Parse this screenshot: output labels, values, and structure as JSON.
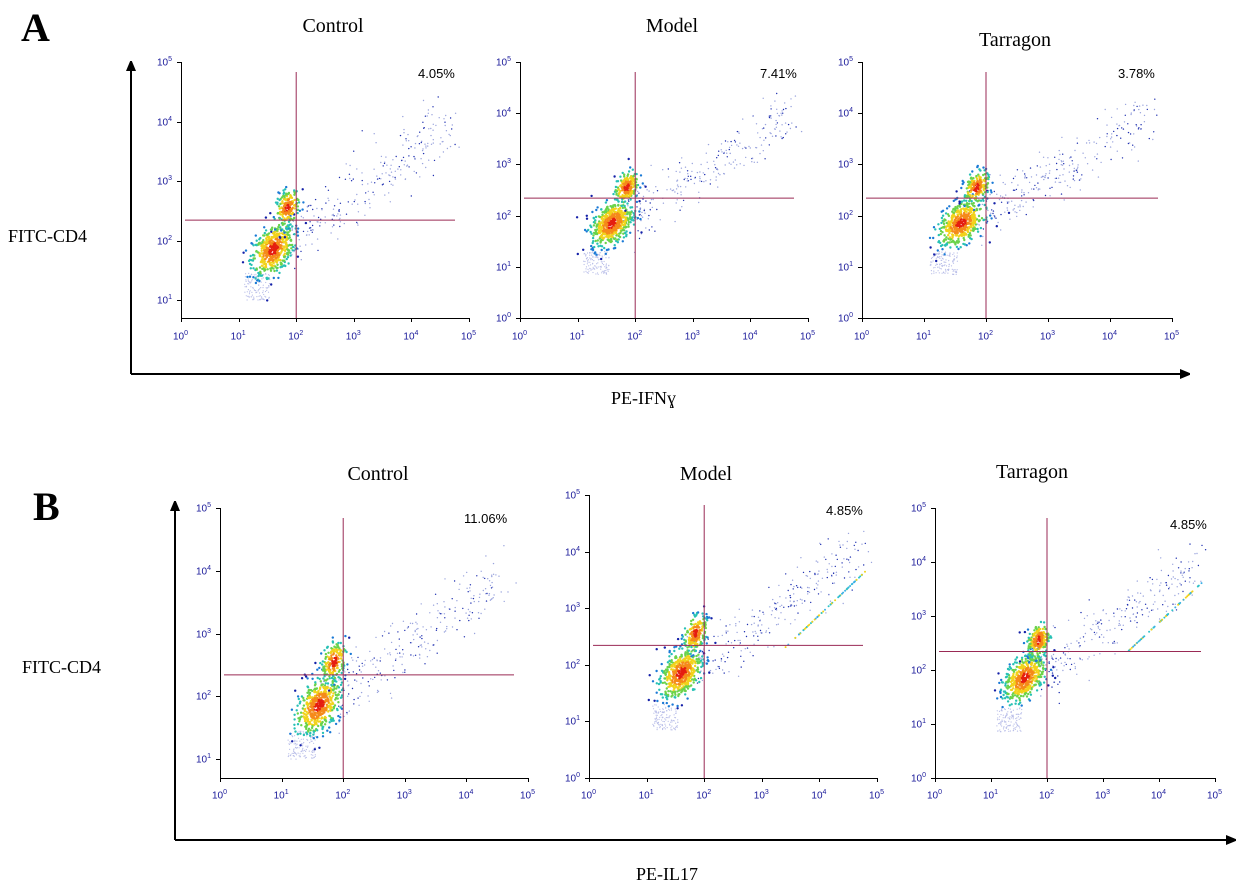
{
  "figure": {
    "panels": [
      {
        "letter": "A",
        "ylabel": "FITC-CD4",
        "xlabel": "PE-IFNɣ",
        "plots": [
          {
            "title": "Control",
            "percent": "4.05%"
          },
          {
            "title": "Model",
            "percent": "7.41%"
          },
          {
            "title": "Tarragon",
            "percent": "3.78%"
          }
        ]
      },
      {
        "letter": "B",
        "ylabel": "FITC-CD4",
        "xlabel": "PE-IL17",
        "plots": [
          {
            "title": "Control",
            "percent": "11.06%"
          },
          {
            "title": "Model",
            "percent": "4.85%"
          },
          {
            "title": "Tarragon",
            "percent": "4.85%"
          }
        ]
      }
    ]
  },
  "chart_data": [
    {
      "type": "scatter",
      "panel": "A",
      "title": "Control",
      "xlabel": "PE-IFNɣ",
      "ylabel": "FITC-CD4",
      "x_scale": "log",
      "y_scale": "log",
      "xlim": [
        1,
        100000
      ],
      "ylim": [
        5,
        100000
      ],
      "x_ticks": [
        "10^0",
        "10^1",
        "10^2",
        "10^3",
        "10^4",
        "10^5"
      ],
      "y_ticks": [
        "10^1",
        "10^2",
        "10^3",
        "10^4",
        "10^5"
      ],
      "quadrant_gate": {
        "x": 100,
        "y": 220
      },
      "upper_right_percent": 4.05
    },
    {
      "type": "scatter",
      "panel": "A",
      "title": "Model",
      "xlabel": "PE-IFNɣ",
      "ylabel": "FITC-CD4",
      "x_scale": "log",
      "y_scale": "log",
      "xlim": [
        1,
        100000
      ],
      "ylim": [
        1,
        100000
      ],
      "x_ticks": [
        "10^0",
        "10^1",
        "10^2",
        "10^3",
        "10^4",
        "10^5"
      ],
      "y_ticks": [
        "10^0",
        "10^1",
        "10^2",
        "10^3",
        "10^4",
        "10^5"
      ],
      "quadrant_gate": {
        "x": 100,
        "y": 220
      },
      "upper_right_percent": 7.41
    },
    {
      "type": "scatter",
      "panel": "A",
      "title": "Tarragon",
      "xlabel": "PE-IFNɣ",
      "ylabel": "FITC-CD4",
      "x_scale": "log",
      "y_scale": "log",
      "xlim": [
        1,
        100000
      ],
      "ylim": [
        1,
        100000
      ],
      "x_ticks": [
        "10^0",
        "10^1",
        "10^2",
        "10^3",
        "10^4",
        "10^5"
      ],
      "y_ticks": [
        "10^0",
        "10^1",
        "10^2",
        "10^3",
        "10^4",
        "10^5"
      ],
      "quadrant_gate": {
        "x": 100,
        "y": 220
      },
      "upper_right_percent": 3.78
    },
    {
      "type": "scatter",
      "panel": "B",
      "title": "Control",
      "xlabel": "PE-IL17",
      "ylabel": "FITC-CD4",
      "x_scale": "log",
      "y_scale": "log",
      "xlim": [
        1,
        100000
      ],
      "ylim": [
        5,
        100000
      ],
      "x_ticks": [
        "10^0",
        "10^1",
        "10^2",
        "10^3",
        "10^4",
        "10^5"
      ],
      "y_ticks": [
        "10^1",
        "10^2",
        "10^3",
        "10^4",
        "10^5"
      ],
      "quadrant_gate": {
        "x": 100,
        "y": 220
      },
      "upper_right_percent": 11.06
    },
    {
      "type": "scatter",
      "panel": "B",
      "title": "Model",
      "xlabel": "PE-IL17",
      "ylabel": "FITC-CD4",
      "x_scale": "log",
      "y_scale": "log",
      "xlim": [
        1,
        100000
      ],
      "ylim": [
        1,
        100000
      ],
      "x_ticks": [
        "10^0",
        "10^1",
        "10^2",
        "10^3",
        "10^4",
        "10^5"
      ],
      "y_ticks": [
        "10^0",
        "10^1",
        "10^2",
        "10^3",
        "10^4",
        "10^5"
      ],
      "quadrant_gate": {
        "x": 100,
        "y": 220
      },
      "upper_right_percent": 4.85
    },
    {
      "type": "scatter",
      "panel": "B",
      "title": "Tarragon",
      "xlabel": "PE-IL17",
      "ylabel": "FITC-CD4",
      "x_scale": "log",
      "y_scale": "log",
      "xlim": [
        1,
        100000
      ],
      "ylim": [
        1,
        100000
      ],
      "x_ticks": [
        "10^0",
        "10^1",
        "10^2",
        "10^3",
        "10^4",
        "10^5"
      ],
      "y_ticks": [
        "10^0",
        "10^1",
        "10^2",
        "10^3",
        "10^4",
        "10^5"
      ],
      "quadrant_gate": {
        "x": 100,
        "y": 220
      },
      "upper_right_percent": 4.85
    }
  ]
}
